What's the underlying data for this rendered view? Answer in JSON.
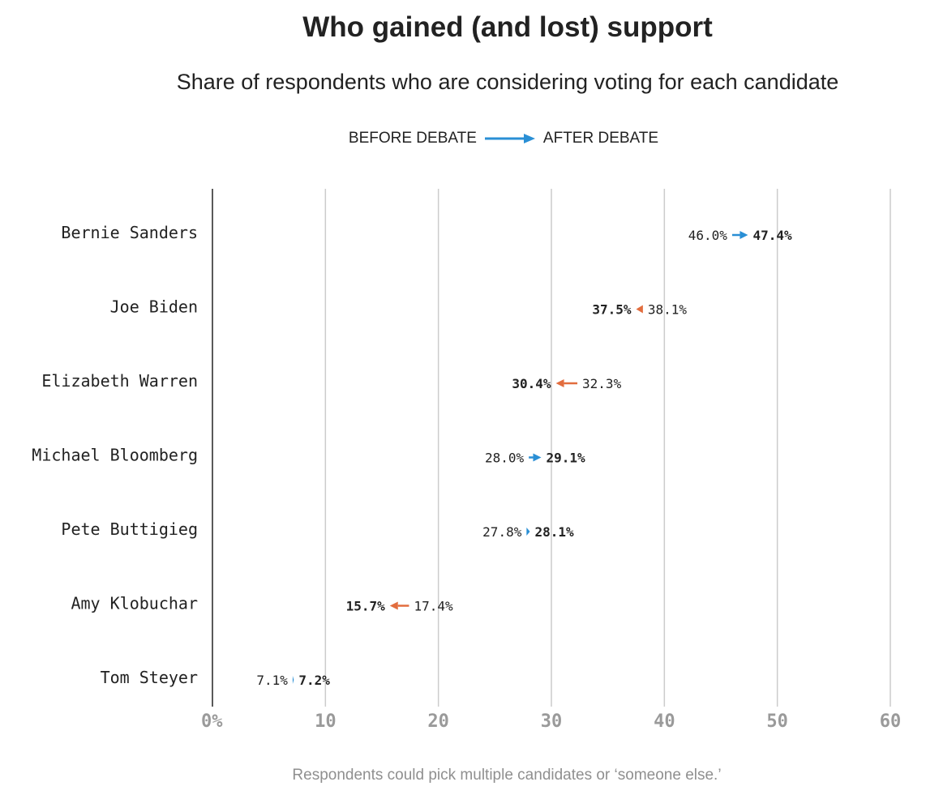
{
  "chart_data": {
    "type": "dumbbell",
    "title": "Who gained (and lost) support",
    "subtitle": "Share of respondents who are considering voting for each candidate",
    "legend": {
      "before_label": "BEFORE DEBATE",
      "after_label": "AFTER DEBATE"
    },
    "x_ticks": [
      "0%",
      "10",
      "20",
      "30",
      "40",
      "50",
      "60"
    ],
    "xlim": [
      0,
      60
    ],
    "grid": true,
    "colors": {
      "gain": "#2a8fd5",
      "loss": "#e26d3e",
      "grid": "#cccccc",
      "axis": "#222222"
    },
    "rows": [
      {
        "name": "Bernie Sanders",
        "before": 46.0,
        "after": 47.4,
        "before_label": "46.0%",
        "after_label": "47.4%"
      },
      {
        "name": "Joe Biden",
        "before": 38.1,
        "after": 37.5,
        "before_label": "38.1%",
        "after_label": "37.5%"
      },
      {
        "name": "Elizabeth Warren",
        "before": 32.3,
        "after": 30.4,
        "before_label": "32.3%",
        "after_label": "30.4%"
      },
      {
        "name": "Michael Bloomberg",
        "before": 28.0,
        "after": 29.1,
        "before_label": "28.0%",
        "after_label": "29.1%"
      },
      {
        "name": "Pete Buttigieg",
        "before": 27.8,
        "after": 28.1,
        "before_label": "27.8%",
        "after_label": "28.1%"
      },
      {
        "name": "Amy Klobuchar",
        "before": 17.4,
        "after": 15.7,
        "before_label": "17.4%",
        "after_label": "15.7%"
      },
      {
        "name": "Tom Steyer",
        "before": 7.1,
        "after": 7.2,
        "before_label": "7.1%",
        "after_label": "7.2%"
      }
    ],
    "footnote": "Respondents could pick multiple candidates or ‘someone else.’"
  }
}
